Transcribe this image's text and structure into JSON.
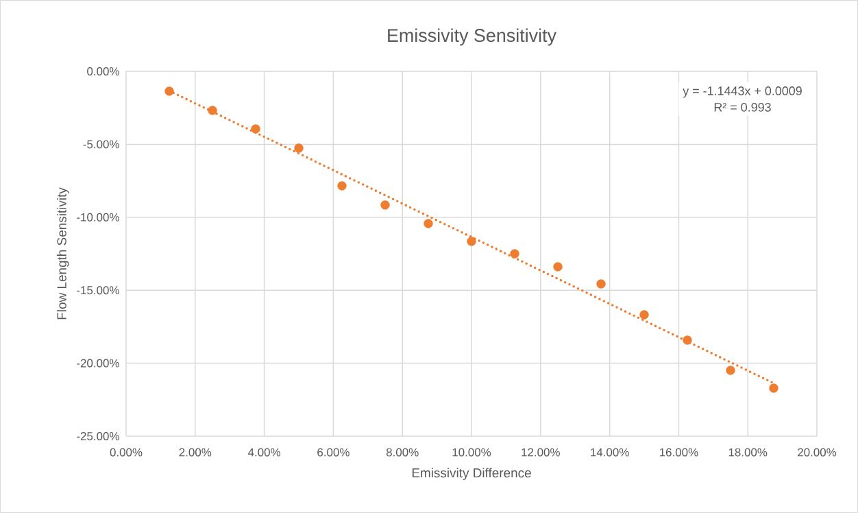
{
  "chart_data": {
    "type": "scatter",
    "title": "Emissivity Sensitivity",
    "xlabel": "Emissivity Difference",
    "ylabel": "Flow Length Sensitivity",
    "x": [
      1.25,
      2.5,
      3.75,
      5,
      6.25,
      7.5,
      8.75,
      10,
      11.25,
      12.5,
      13.75,
      15,
      16.25,
      17.5,
      18.75
    ],
    "series": [
      {
        "color": "#ed7d31",
        "marker": "circle",
        "values": [
          -1.36,
          -2.68,
          -3.95,
          -5.26,
          -7.85,
          -9.16,
          -10.43,
          -11.65,
          -12.5,
          -13.39,
          -14.57,
          -16.68,
          -18.42,
          -20.49,
          -21.71
        ]
      },
      {
        "type": "line",
        "x": [
          1.25,
          18.75
        ],
        "values": [
          -1.34,
          -21.37
        ],
        "color": "#ed7d31",
        "line_style": "dotted",
        "marker": "none"
      }
    ],
    "xlim": [
      0,
      20
    ],
    "ylim": [
      -25,
      0
    ],
    "xticks": [
      {
        "value": 0,
        "label": "0.00%"
      },
      {
        "value": 2,
        "label": "2.00%"
      },
      {
        "value": 4,
        "label": "4.00%"
      },
      {
        "value": 6,
        "label": "6.00%"
      },
      {
        "value": 8,
        "label": "8.00%"
      },
      {
        "value": 10,
        "label": "10.00%"
      },
      {
        "value": 12,
        "label": "12.00%"
      },
      {
        "value": 14,
        "label": "14.00%"
      },
      {
        "value": 16,
        "label": "16.00%"
      },
      {
        "value": 18,
        "label": "18.00%"
      },
      {
        "value": 20,
        "label": "20.00%"
      }
    ],
    "yticks": [
      {
        "value": -25,
        "label": "-25.00%"
      },
      {
        "value": -20,
        "label": "-20.00%"
      },
      {
        "value": -15,
        "label": "-15.00%"
      },
      {
        "value": -10,
        "label": "-10.00%"
      },
      {
        "value": -5,
        "label": "-5.00%"
      },
      {
        "value": 0,
        "label": "0.00%"
      }
    ],
    "grid": true,
    "annotations": [
      "y = -1.1443x + 0.0009",
      "R² = 0.993"
    ]
  }
}
